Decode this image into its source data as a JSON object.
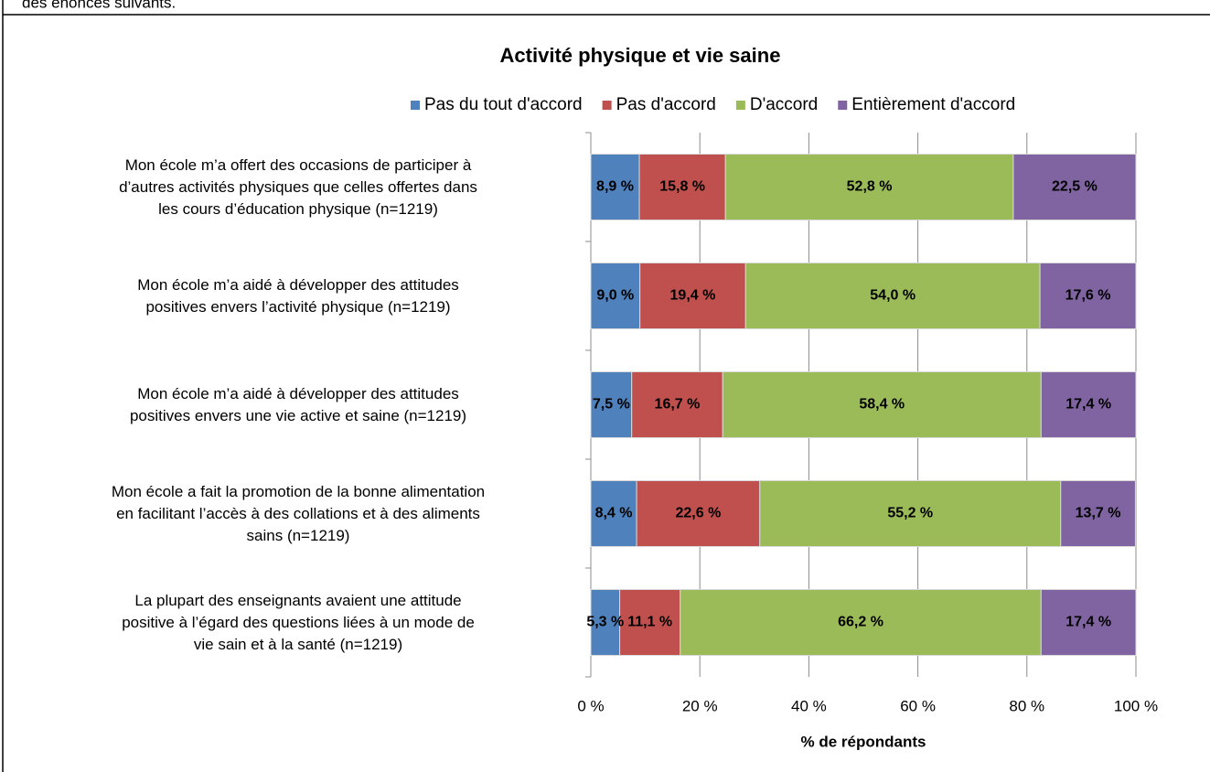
{
  "header_text": "des énoncés suivants.",
  "chart_data": {
    "type": "stacked_bar_horizontal",
    "title": "Activité physique et vie saine",
    "xlabel": "% de répondants",
    "categories": [
      "Mon école m’a offert des occasions de participer à\nd’autres activités physiques que celles offertes dans\nles cours d’éducation physique (n=1219)",
      "Mon école m’a aidé à développer des attitudes\npositives envers l’activité physique (n=1219)",
      "Mon école m’a aidé à développer des attitudes\npositives envers une vie active et saine (n=1219)",
      "Mon école a fait la promotion de la bonne alimentation\nen facilitant l’accès à des collations et à des aliments\nsains (n=1219)",
      "La plupart des enseignants avaient une attitude\npositive à l’égard des questions liées à un mode de\nvie sain et à la santé (n=1219)"
    ],
    "series": [
      {
        "name": "Pas du tout d'accord",
        "color": "#4f81bd",
        "label_color": "#000000",
        "values": [
          8.9,
          9.0,
          7.5,
          8.4,
          5.3
        ],
        "value_labels": [
          "8,9 %",
          "9,0 %",
          "7,5 %",
          "8,4 %",
          "5,3 %"
        ]
      },
      {
        "name": "Pas d'accord",
        "color": "#c0504d",
        "label_color": "#ffffff",
        "values": [
          15.8,
          19.4,
          16.7,
          22.6,
          11.1
        ],
        "value_labels": [
          "15,8 %",
          "19,4 %",
          "16,7 %",
          "22,6 %",
          "11,1 %"
        ]
      },
      {
        "name": "D'accord",
        "color": "#9bbb59",
        "label_color": "#ffffff",
        "values": [
          52.8,
          54.0,
          58.4,
          55.2,
          66.2
        ],
        "value_labels": [
          "52,8 %",
          "54,0 %",
          "58,4 %",
          "55,2 %",
          "66,2 %"
        ]
      },
      {
        "name": "Entièrement d'accord",
        "color": "#8064a2",
        "label_color": "#ffffff",
        "values": [
          22.5,
          17.6,
          17.4,
          13.7,
          17.4
        ],
        "value_labels": [
          "22,5 %",
          "17,6 %",
          "17,4 %",
          "13,7 %",
          "17,4 %"
        ]
      }
    ],
    "xlim": [
      0,
      100
    ],
    "xticks": [
      {
        "value": 0,
        "label": "0 %"
      },
      {
        "value": 20,
        "label": "20 %"
      },
      {
        "value": 40,
        "label": "40 %"
      },
      {
        "value": 60,
        "label": "60 %"
      },
      {
        "value": 80,
        "label": "80 %"
      },
      {
        "value": 100,
        "label": "100 %"
      }
    ],
    "grid": true,
    "legend": "top"
  }
}
